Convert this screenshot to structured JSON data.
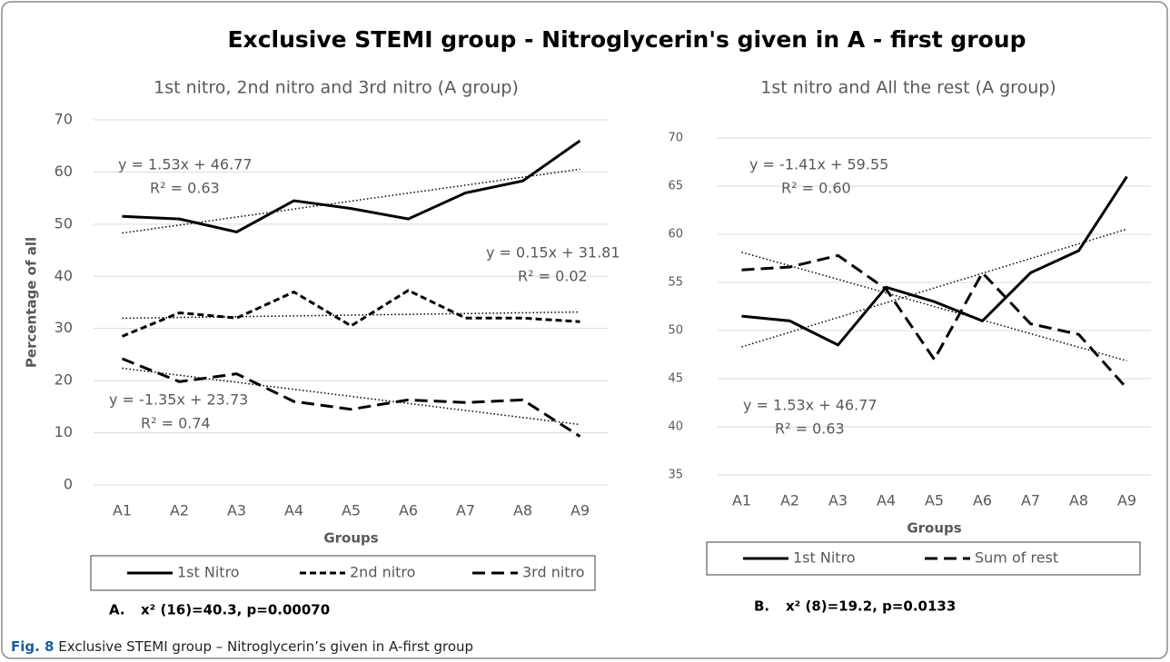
{
  "title": "Exclusive STEMI group - Nitroglycerin's given in A - first group",
  "chart_data": [
    {
      "type": "line",
      "title": "1st nitro, 2nd nitro and 3rd nitro (A group)",
      "x_label": "Groups",
      "y_label": "Percentage of all",
      "categories": [
        "A1",
        "A2",
        "A3",
        "A4",
        "A5",
        "A6",
        "A7",
        "A8",
        "A9"
      ],
      "ylim": [
        0,
        70
      ],
      "yticks": [
        0,
        10,
        20,
        30,
        40,
        50,
        60,
        70
      ],
      "grid": true,
      "series": [
        {
          "name": "1st Nitro",
          "color": "#000000",
          "dash": "solid",
          "values": [
            51.5,
            51,
            48.5,
            54.5,
            53,
            51,
            56,
            58.3,
            66
          ]
        },
        {
          "name": "2nd nitro",
          "color": "#000000",
          "dash": "short",
          "values": [
            28.5,
            33,
            32,
            37,
            30.5,
            37.3,
            32,
            32,
            31.3
          ]
        },
        {
          "name": "3rd nitro",
          "color": "#000000",
          "dash": "long",
          "values": [
            24.2,
            19.8,
            21.3,
            16,
            14.5,
            16.3,
            15.8,
            16.3,
            9.3
          ]
        }
      ],
      "trendlines": [
        {
          "slope": 1.53,
          "intercept": 46.77,
          "label": "y = 1.53x + 46.77",
          "r2_label": "R² = 0.63"
        },
        {
          "slope": 0.15,
          "intercept": 31.81,
          "label": "y = 0.15x + 31.81",
          "r2_label": "R² = 0.02"
        },
        {
          "slope": -1.35,
          "intercept": 23.73,
          "label": "y = -1.35x + 23.73",
          "r2_label": "R² = 0.74"
        }
      ],
      "note": {
        "label": "A.",
        "text": "x² (16)=40.3, p=0.00070"
      }
    },
    {
      "type": "line",
      "title": "1st nitro and All the rest (A group)",
      "x_label": "Groups",
      "categories": [
        "A1",
        "A2",
        "A3",
        "A4",
        "A5",
        "A6",
        "A7",
        "A8",
        "A9"
      ],
      "ylim": [
        35,
        70
      ],
      "yticks": [
        35,
        40,
        45,
        50,
        55,
        60,
        65,
        70
      ],
      "grid": true,
      "series": [
        {
          "name": "1st Nitro",
          "color": "#000000",
          "dash": "solid",
          "values": [
            51.5,
            51,
            48.5,
            54.5,
            53,
            51,
            56,
            58.3,
            66
          ]
        },
        {
          "name": "Sum of rest",
          "color": "#000000",
          "dash": "long",
          "values": [
            56.3,
            56.6,
            57.8,
            54.3,
            47,
            56,
            50.7,
            49.6,
            44
          ]
        }
      ],
      "trendlines": [
        {
          "slope": -1.41,
          "intercept": 59.55,
          "label": "y = -1.41x + 59.55",
          "r2_label": "R² = 0.60"
        },
        {
          "slope": 1.53,
          "intercept": 46.77,
          "label": "y = 1.53x + 46.77",
          "r2_label": "R² = 0.63"
        }
      ],
      "note": {
        "label": "B.",
        "text": "x² (8)=19.2, p=0.0133"
      }
    }
  ],
  "caption": {
    "label": "Fig. 8",
    "text": "Exclusive STEMI group – Nitroglycerin’s given in A-first group"
  }
}
